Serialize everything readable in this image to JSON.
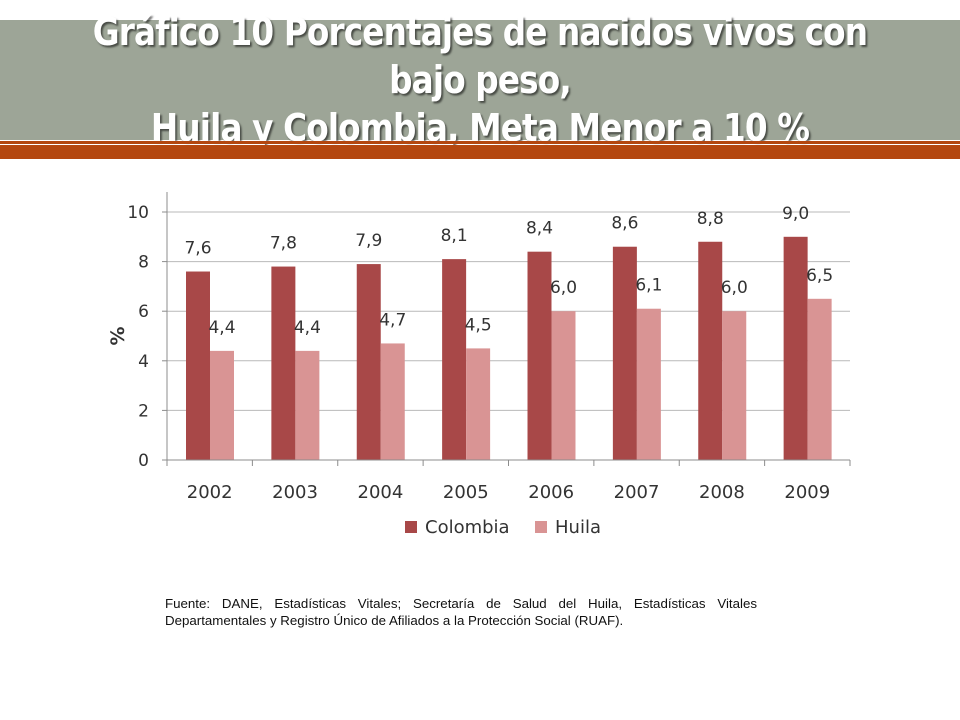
{
  "header": {
    "title_line1": "Gráfico 10 Porcentajes de nacidos vivos con bajo peso,",
    "title_line2": "Huila y Colombia, Meta Menor a 10 %"
  },
  "colors": {
    "title_bar": "#9da597",
    "accent_stripe": "#b4470f",
    "colombia": "#a84848",
    "huila": "#d99494"
  },
  "chart_data": {
    "type": "bar",
    "categories": [
      "2002",
      "2003",
      "2004",
      "2005",
      "2006",
      "2007",
      "2008",
      "2009"
    ],
    "series": [
      {
        "name": "Colombia",
        "values": [
          7.6,
          7.8,
          7.9,
          8.1,
          8.4,
          8.6,
          8.8,
          9.0
        ],
        "labels": [
          "7,6",
          "7,8",
          "7,9",
          "8,1",
          "8,4",
          "8,6",
          "8,8",
          "9,0"
        ]
      },
      {
        "name": "Huila",
        "values": [
          4.4,
          4.4,
          4.7,
          4.5,
          6.0,
          6.1,
          6.0,
          6.5
        ],
        "labels": [
          "4,4",
          "4,4",
          "4,7",
          "4,5",
          "6,0",
          "6,1",
          "6,0",
          "6,5"
        ]
      }
    ],
    "ylabel": "%",
    "xlabel": "",
    "ylim": [
      0,
      10
    ],
    "yticks": [
      0,
      2,
      4,
      6,
      8,
      10
    ],
    "grid": true,
    "legend": "bottom"
  },
  "footer": {
    "source": "Fuente: DANE, Estadísticas Vitales; Secretaría de Salud del Huila, Estadísticas Vitales Departamentales y Registro Único de Afiliados a la Protección Social (RUAF)."
  }
}
